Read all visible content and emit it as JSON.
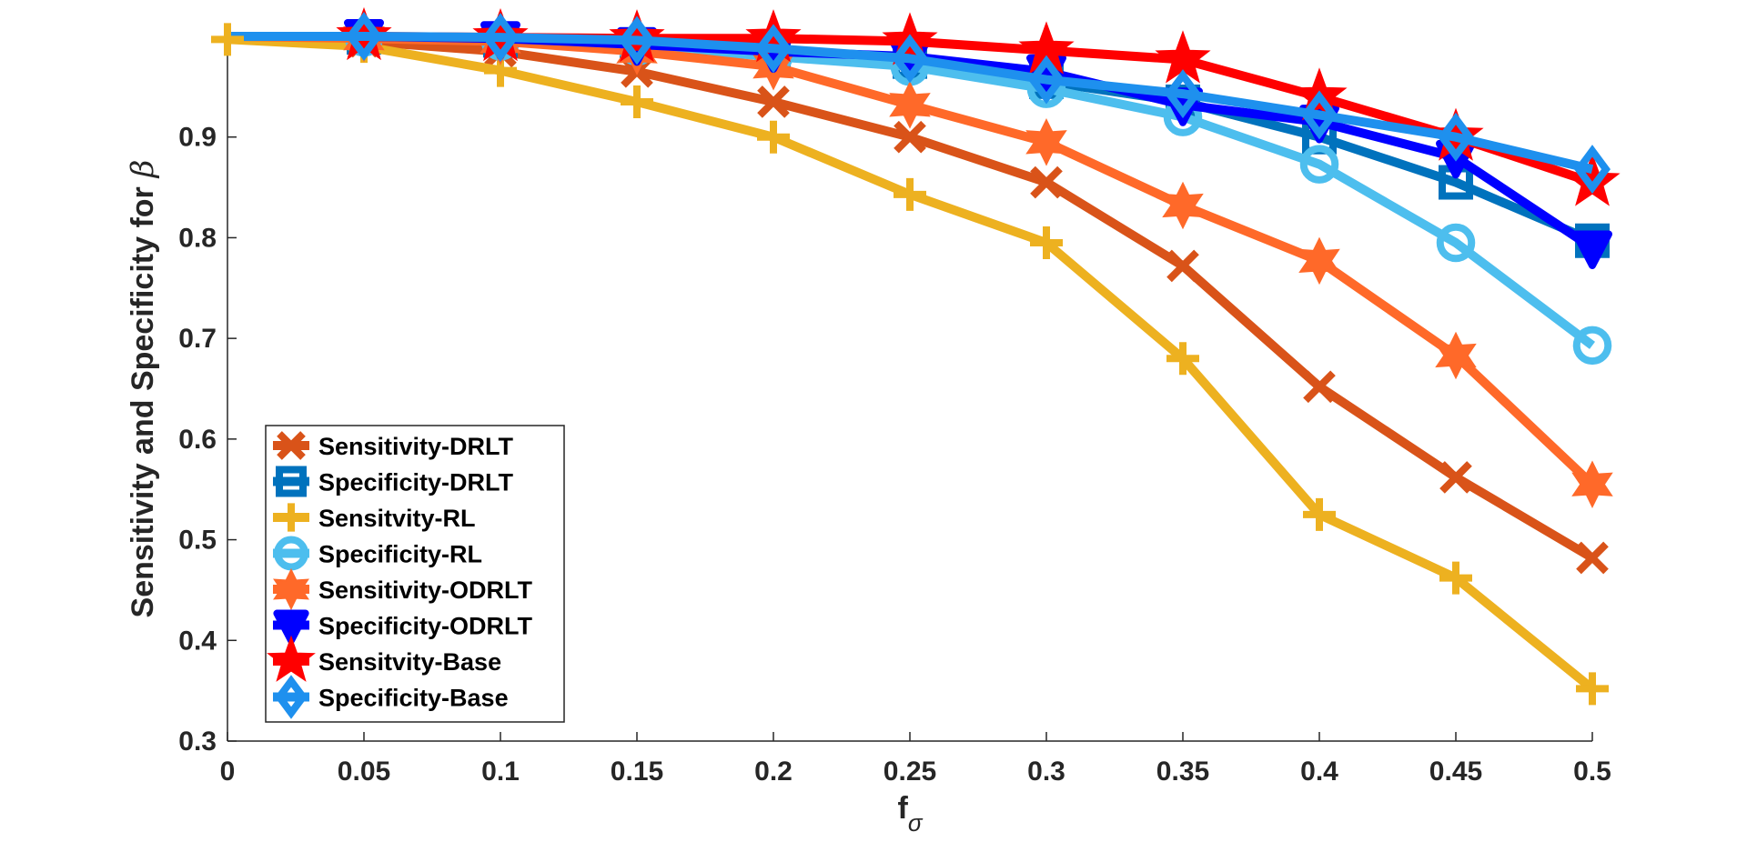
{
  "chart_data": {
    "type": "line",
    "title": "",
    "xlabel": "f",
    "xlabel_sub": "σ",
    "ylabel": "Sensitivity and Specificity for",
    "ylabel_symbol": "β",
    "xlim": [
      0,
      0.5
    ],
    "ylim": [
      0.3,
      1.0
    ],
    "xticks": [
      "0",
      "0.05",
      "0.1",
      "0.15",
      "0.2",
      "0.25",
      "0.3",
      "0.35",
      "0.4",
      "0.45",
      "0.5"
    ],
    "yticks": [
      "0.3",
      "0.4",
      "0.5",
      "0.6",
      "0.7",
      "0.8",
      "0.9"
    ],
    "x": [
      0,
      0.05,
      0.1,
      0.15,
      0.2,
      0.25,
      0.3,
      0.35,
      0.4,
      0.45,
      0.5
    ],
    "legend_position": "bottom-left",
    "series": [
      {
        "name": "Sensitivity-DRLT",
        "color": "#D95319",
        "marker": "x",
        "values": [
          1.0,
          0.995,
          0.985,
          0.965,
          0.935,
          0.9,
          0.855,
          0.772,
          0.652,
          0.562,
          0.482
        ]
      },
      {
        "name": "Specificity-DRLT",
        "color": "#0072BD",
        "marker": "square",
        "values": [
          1.0,
          0.999,
          0.996,
          0.992,
          0.985,
          0.975,
          0.955,
          0.935,
          0.9,
          0.855,
          0.797
        ]
      },
      {
        "name": "Sensitvity-RL",
        "color": "#EDB120",
        "marker": "plus",
        "values": [
          0.997,
          0.99,
          0.966,
          0.935,
          0.9,
          0.843,
          0.795,
          0.68,
          0.525,
          0.462,
          0.352
        ]
      },
      {
        "name": "Specificity-RL",
        "color": "#4DBEEE",
        "marker": "circle",
        "values": [
          1.0,
          0.999,
          0.995,
          0.99,
          0.98,
          0.97,
          0.948,
          0.92,
          0.873,
          0.795,
          0.693
        ]
      },
      {
        "name": "Sensitivity-ODRLT",
        "color": "#FF6929",
        "marker": "hexagram",
        "values": [
          1.0,
          0.998,
          0.995,
          0.985,
          0.97,
          0.932,
          0.895,
          0.832,
          0.777,
          0.683,
          0.555
        ]
      },
      {
        "name": "Specificity-ODRLT",
        "color": "#0000FF",
        "marker": "triangle-down",
        "values": [
          1.0,
          1.0,
          0.998,
          0.992,
          0.985,
          0.98,
          0.965,
          0.932,
          0.915,
          0.88,
          0.79
        ]
      },
      {
        "name": "Sensitvity-Base",
        "color": "#FF0000",
        "marker": "pentagram",
        "values": [
          1.0,
          1.0,
          0.999,
          0.998,
          0.998,
          0.995,
          0.986,
          0.977,
          0.94,
          0.9,
          0.855
        ]
      },
      {
        "name": "Specificity-Base",
        "color": "#1E90EE",
        "marker": "diamond",
        "values": [
          1.0,
          1.0,
          0.999,
          0.996,
          0.988,
          0.978,
          0.957,
          0.943,
          0.922,
          0.9,
          0.868
        ]
      }
    ]
  }
}
